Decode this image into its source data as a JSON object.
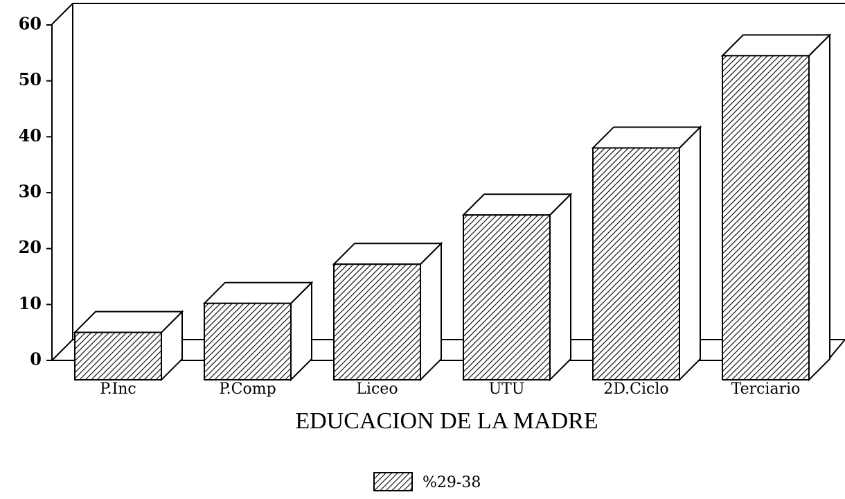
{
  "chart_data": {
    "type": "bar3d",
    "xlabel": "EDUCACION DE LA MADRE",
    "categories": [
      "P.Inc",
      "P.Comp",
      "Liceo",
      "UTU",
      "2D.Ciclo",
      "Terciario"
    ],
    "series": [
      {
        "name": "%29-38",
        "color": "#000000",
        "values": [
          5,
          10.2,
          17.2,
          26,
          38,
          54.5
        ]
      }
    ],
    "ylim": [
      0,
      60
    ],
    "yticks": [
      0,
      10,
      20,
      30,
      40,
      50,
      60
    ],
    "legend": "bottom"
  }
}
